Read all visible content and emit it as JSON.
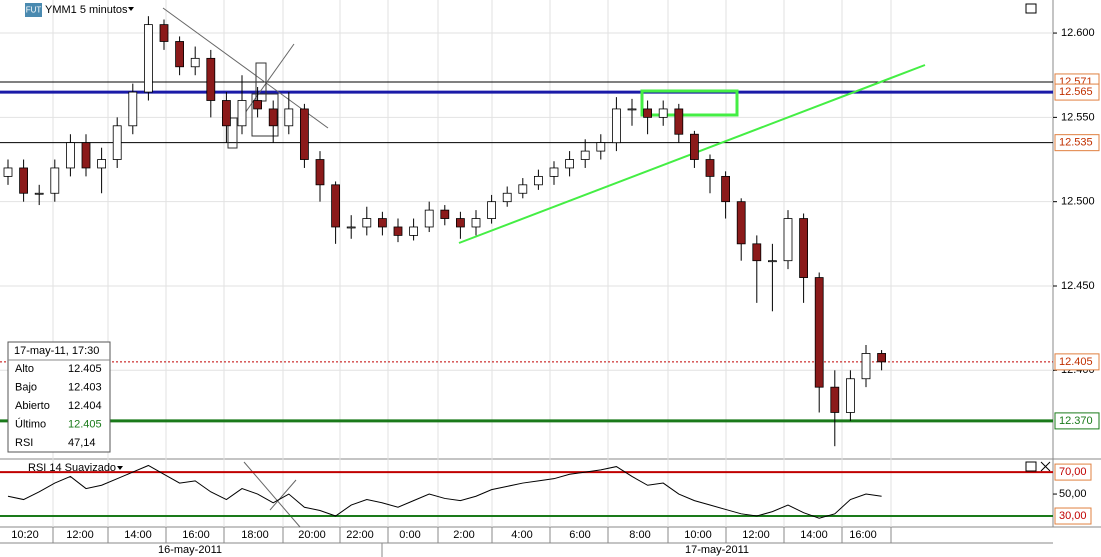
{
  "chart_data": {
    "type": "candlestick",
    "title": "YMM1 5 minutos",
    "badge": "FUT",
    "open": [
      12.515,
      12.52,
      12.505,
      12.505,
      12.52,
      12.535,
      12.52,
      12.525,
      12.545,
      12.565,
      12.605,
      12.595,
      12.58,
      12.585,
      12.56,
      12.545,
      12.56,
      12.555,
      12.545,
      12.555,
      12.525,
      12.51,
      12.485,
      12.485,
      12.49,
      12.485,
      12.48,
      12.485,
      12.495,
      12.49,
      12.485,
      12.49,
      12.5,
      12.505,
      12.51,
      12.515,
      12.52,
      12.525,
      12.53,
      12.535,
      12.555,
      12.555,
      12.55,
      12.555,
      12.54,
      12.525,
      12.515,
      12.5,
      12.475,
      12.465,
      12.465,
      12.49,
      12.455,
      12.39,
      12.375,
      12.395,
      12.41
    ],
    "high": [
      12.525,
      12.525,
      12.51,
      12.525,
      12.54,
      12.54,
      12.532,
      12.55,
      12.57,
      12.61,
      12.608,
      12.598,
      12.592,
      12.59,
      12.565,
      12.575,
      12.568,
      12.56,
      12.565,
      12.558,
      12.53,
      12.512,
      12.492,
      12.497,
      12.494,
      12.49,
      12.49,
      12.5,
      12.498,
      12.494,
      12.495,
      12.504,
      12.509,
      12.514,
      12.519,
      12.524,
      12.53,
      12.537,
      12.54,
      12.562,
      12.561,
      12.56,
      12.56,
      12.558,
      12.542,
      12.528,
      12.518,
      12.502,
      12.48,
      12.475,
      12.495,
      12.493,
      12.458,
      12.4,
      12.4,
      12.415,
      12.412
    ],
    "low": [
      12.51,
      12.5,
      12.498,
      12.5,
      12.515,
      12.515,
      12.505,
      12.52,
      12.54,
      12.56,
      12.59,
      12.575,
      12.575,
      12.55,
      12.535,
      12.54,
      12.55,
      12.535,
      12.54,
      12.52,
      12.5,
      12.475,
      12.478,
      12.48,
      12.48,
      12.476,
      12.477,
      12.482,
      12.486,
      12.478,
      12.48,
      12.487,
      12.497,
      12.502,
      12.507,
      12.51,
      12.515,
      12.52,
      12.525,
      12.53,
      12.545,
      12.54,
      12.545,
      12.535,
      12.52,
      12.505,
      12.49,
      12.465,
      12.44,
      12.435,
      12.46,
      12.44,
      12.375,
      12.355,
      12.37,
      12.39,
      12.4
    ],
    "close": [
      12.52,
      12.505,
      12.505,
      12.52,
      12.535,
      12.52,
      12.525,
      12.545,
      12.565,
      12.605,
      12.595,
      12.58,
      12.585,
      12.56,
      12.545,
      12.56,
      12.555,
      12.545,
      12.555,
      12.525,
      12.51,
      12.485,
      12.485,
      12.49,
      12.485,
      12.48,
      12.485,
      12.495,
      12.49,
      12.485,
      12.49,
      12.5,
      12.505,
      12.51,
      12.515,
      12.52,
      12.525,
      12.53,
      12.535,
      12.555,
      12.555,
      12.55,
      12.555,
      12.54,
      12.525,
      12.515,
      12.5,
      12.475,
      12.465,
      12.465,
      12.49,
      12.455,
      12.39,
      12.375,
      12.395,
      12.41,
      12.405
    ],
    "up_color": "#ffffff",
    "down_color": "#8b1a1a",
    "ylim": [
      12.348,
      12.6196
    ],
    "yticks": [
      {
        "value": 12.4,
        "label": "12.400"
      },
      {
        "value": 12.45,
        "label": "12.450"
      },
      {
        "value": 12.5,
        "label": "12.500"
      },
      {
        "value": 12.55,
        "label": "12.550"
      },
      {
        "value": 12.6,
        "label": "12.600"
      }
    ],
    "levels": [
      {
        "value": 12.571,
        "label": "12.571",
        "color": "#000000",
        "style": "solid"
      },
      {
        "value": 12.565,
        "label": "12.565",
        "color": "#1a1aa8",
        "style": "solid"
      },
      {
        "value": 12.535,
        "label": "12.535",
        "color": "#000000",
        "style": "solid"
      },
      {
        "value": 12.405,
        "label": "12.405",
        "color": "#c00000",
        "style": "dotted"
      },
      {
        "value": 12.37,
        "label": "12.370",
        "color": "#1a7a1a",
        "style": "solid"
      }
    ],
    "time_labels": [
      "10:20",
      "12:00",
      "14:00",
      "16:00",
      "18:00",
      "20:00",
      "22:00",
      "0:00",
      "2:00",
      "4:00",
      "6:00",
      "8:00",
      "10:00",
      "12:00",
      "14:00",
      "16:00"
    ],
    "date_labels": [
      "16-may-2011",
      "17-may-2011"
    ],
    "rsi": {
      "title": "RSI 14 Suavizado",
      "color": "#000000",
      "values": [
        48,
        45,
        52,
        60,
        66,
        55,
        58,
        64,
        70,
        76,
        68,
        60,
        62,
        52,
        45,
        55,
        50,
        42,
        50,
        38,
        35,
        30,
        40,
        45,
        42,
        38,
        44,
        50,
        46,
        44,
        48,
        54,
        57,
        60,
        62,
        64,
        68,
        70,
        72,
        75,
        66,
        58,
        60,
        50,
        44,
        40,
        36,
        32,
        30,
        34,
        40,
        33,
        28,
        32,
        45,
        50,
        48
      ],
      "ylim": [
        20,
        81
      ],
      "yticks": [
        {
          "value": 30,
          "label": "30,00",
          "color": "#c00000"
        },
        {
          "value": 50,
          "label": "50,00",
          "color": "#000000"
        },
        {
          "value": 70,
          "label": "70,00",
          "color": "#c00000"
        }
      ]
    },
    "info": {
      "header": "17-may-11, 17:30",
      "rows": [
        [
          "Alto",
          "12.405"
        ],
        [
          "Bajo",
          "12.403"
        ],
        [
          "Abierto",
          "12.404"
        ],
        [
          "Último",
          "12.405"
        ],
        [
          "RSI",
          "47,14"
        ]
      ]
    }
  }
}
